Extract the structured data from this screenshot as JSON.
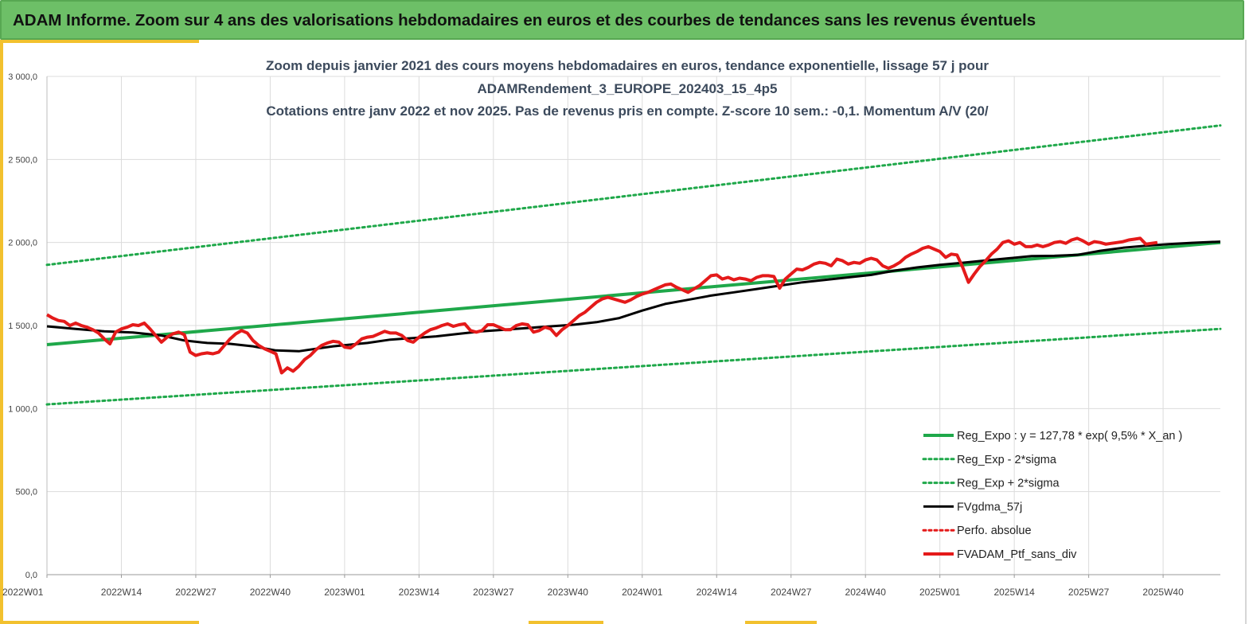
{
  "header": {
    "title": "ADAM Informe. Zoom sur 4 ans des valorisations hebdomadaires en euros et des courbes de tendances sans les revenus éventuels"
  },
  "chart_data": {
    "type": "line",
    "title_lines": [
      "Zoom depuis janvier 2021 des cours moyens hebdomadaires  en euros, tendance exponentielle, lissage 57 j pour",
      "ADAMRendement_3_EUROPE_202403_15_4p5",
      "Cotations entre janv 2022 et nov 2025. Pas de revenus pris en compte. Z-score 10 sem.: -0,1. Momentum A/V (20/"
    ],
    "ylim": [
      0,
      3000
    ],
    "y_ticks": [
      "0,0",
      "500,0",
      "1 000,0",
      "1 500,0",
      "2 000,0",
      "2 500,0",
      "3 000,0"
    ],
    "x_ticks": [
      "2022W01",
      "2022W14",
      "2022W27",
      "2022W40",
      "2023W01",
      "2023W14",
      "2023W27",
      "2023W40",
      "2024W01",
      "2024W14",
      "2024W27",
      "2024W40",
      "2025W01",
      "2025W14",
      "2025W27",
      "2025W40"
    ],
    "x_range_weeks": [
      0,
      205
    ],
    "grid": true,
    "legend_position": "bottom-right",
    "series": [
      {
        "name": "Reg_Expo : y = 127,78 * exp( 9,5% *  X_an )",
        "color": "#1fa84a",
        "style": "solid",
        "width": 4,
        "points": [
          [
            0,
            1385
          ],
          [
            205,
            2000
          ]
        ]
      },
      {
        "name": "Reg_Exp - 2*sigma",
        "color": "#1fa84a",
        "style": "dotted",
        "width": 3,
        "points": [
          [
            0,
            1025
          ],
          [
            205,
            1480
          ]
        ]
      },
      {
        "name": "Reg_Exp + 2*sigma",
        "color": "#1fa84a",
        "style": "dotted",
        "width": 3,
        "points": [
          [
            0,
            1865
          ],
          [
            205,
            2705
          ]
        ]
      },
      {
        "name": "FVgdma_57j",
        "color": "#000000",
        "style": "solid",
        "width": 3,
        "points": [
          [
            0,
            1495
          ],
          [
            5,
            1480
          ],
          [
            10,
            1465
          ],
          [
            15,
            1458
          ],
          [
            20,
            1440
          ],
          [
            24,
            1410
          ],
          [
            28,
            1395
          ],
          [
            32,
            1390
          ],
          [
            36,
            1375
          ],
          [
            40,
            1350
          ],
          [
            44,
            1345
          ],
          [
            47,
            1360
          ],
          [
            50,
            1375
          ],
          [
            53,
            1385
          ],
          [
            56,
            1395
          ],
          [
            60,
            1415
          ],
          [
            64,
            1425
          ],
          [
            68,
            1435
          ],
          [
            72,
            1450
          ],
          [
            76,
            1465
          ],
          [
            80,
            1475
          ],
          [
            84,
            1485
          ],
          [
            88,
            1495
          ],
          [
            92,
            1505
          ],
          [
            96,
            1520
          ],
          [
            100,
            1545
          ],
          [
            104,
            1590
          ],
          [
            108,
            1630
          ],
          [
            112,
            1655
          ],
          [
            116,
            1680
          ],
          [
            120,
            1700
          ],
          [
            124,
            1720
          ],
          [
            128,
            1740
          ],
          [
            132,
            1760
          ],
          [
            136,
            1775
          ],
          [
            140,
            1790
          ],
          [
            144,
            1805
          ],
          [
            148,
            1830
          ],
          [
            152,
            1850
          ],
          [
            156,
            1865
          ],
          [
            160,
            1878
          ],
          [
            164,
            1892
          ],
          [
            168,
            1905
          ],
          [
            172,
            1918
          ],
          [
            176,
            1920
          ],
          [
            180,
            1925
          ],
          [
            184,
            1950
          ],
          [
            188,
            1968
          ],
          [
            192,
            1980
          ],
          [
            196,
            1990
          ],
          [
            200,
            1998
          ],
          [
            205,
            2005
          ]
        ]
      },
      {
        "name": "Perfo. absolue",
        "color": "#e41a1a",
        "style": "dotted",
        "width": 3,
        "points": []
      },
      {
        "name": "FVADAM_Ptf_sans_div",
        "color": "#e41a1a",
        "style": "solid",
        "width": 4,
        "points": [
          [
            0,
            1565
          ],
          [
            1,
            1545
          ],
          [
            2,
            1530
          ],
          [
            3,
            1525
          ],
          [
            4,
            1500
          ],
          [
            5,
            1515
          ],
          [
            6,
            1500
          ],
          [
            7,
            1490
          ],
          [
            8,
            1475
          ],
          [
            9,
            1455
          ],
          [
            10,
            1420
          ],
          [
            11,
            1390
          ],
          [
            12,
            1460
          ],
          [
            13,
            1480
          ],
          [
            14,
            1490
          ],
          [
            15,
            1505
          ],
          [
            16,
            1500
          ],
          [
            17,
            1515
          ],
          [
            18,
            1480
          ],
          [
            19,
            1440
          ],
          [
            20,
            1400
          ],
          [
            21,
            1430
          ],
          [
            22,
            1450
          ],
          [
            23,
            1460
          ],
          [
            24,
            1445
          ],
          [
            25,
            1340
          ],
          [
            26,
            1320
          ],
          [
            27,
            1330
          ],
          [
            28,
            1335
          ],
          [
            29,
            1330
          ],
          [
            30,
            1340
          ],
          [
            31,
            1380
          ],
          [
            32,
            1420
          ],
          [
            33,
            1450
          ],
          [
            34,
            1470
          ],
          [
            35,
            1455
          ],
          [
            36,
            1410
          ],
          [
            37,
            1380
          ],
          [
            38,
            1360
          ],
          [
            39,
            1345
          ],
          [
            40,
            1330
          ],
          [
            41,
            1215
          ],
          [
            42,
            1245
          ],
          [
            43,
            1225
          ],
          [
            44,
            1255
          ],
          [
            45,
            1295
          ],
          [
            46,
            1320
          ],
          [
            47,
            1355
          ],
          [
            48,
            1380
          ],
          [
            49,
            1395
          ],
          [
            50,
            1405
          ],
          [
            51,
            1400
          ],
          [
            52,
            1370
          ],
          [
            53,
            1365
          ],
          [
            54,
            1390
          ],
          [
            55,
            1420
          ],
          [
            56,
            1430
          ],
          [
            57,
            1435
          ],
          [
            58,
            1450
          ],
          [
            59,
            1465
          ],
          [
            60,
            1455
          ],
          [
            61,
            1455
          ],
          [
            62,
            1440
          ],
          [
            63,
            1410
          ],
          [
            64,
            1400
          ],
          [
            65,
            1430
          ],
          [
            66,
            1455
          ],
          [
            67,
            1475
          ],
          [
            68,
            1485
          ],
          [
            69,
            1500
          ],
          [
            70,
            1510
          ],
          [
            71,
            1495
          ],
          [
            72,
            1505
          ],
          [
            73,
            1510
          ],
          [
            74,
            1470
          ],
          [
            75,
            1460
          ],
          [
            76,
            1470
          ],
          [
            77,
            1505
          ],
          [
            78,
            1505
          ],
          [
            79,
            1490
          ],
          [
            80,
            1475
          ],
          [
            81,
            1475
          ],
          [
            82,
            1500
          ],
          [
            83,
            1510
          ],
          [
            84,
            1505
          ],
          [
            85,
            1460
          ],
          [
            86,
            1470
          ],
          [
            87,
            1490
          ],
          [
            88,
            1480
          ],
          [
            89,
            1440
          ],
          [
            90,
            1475
          ],
          [
            91,
            1500
          ],
          [
            92,
            1530
          ],
          [
            93,
            1560
          ],
          [
            94,
            1580
          ],
          [
            95,
            1610
          ],
          [
            96,
            1640
          ],
          [
            97,
            1660
          ],
          [
            98,
            1670
          ],
          [
            99,
            1660
          ],
          [
            100,
            1650
          ],
          [
            101,
            1640
          ],
          [
            102,
            1655
          ],
          [
            103,
            1675
          ],
          [
            104,
            1690
          ],
          [
            105,
            1700
          ],
          [
            106,
            1715
          ],
          [
            107,
            1730
          ],
          [
            108,
            1745
          ],
          [
            109,
            1750
          ],
          [
            110,
            1730
          ],
          [
            111,
            1715
          ],
          [
            112,
            1700
          ],
          [
            113,
            1720
          ],
          [
            114,
            1740
          ],
          [
            115,
            1770
          ],
          [
            116,
            1800
          ],
          [
            117,
            1805
          ],
          [
            118,
            1780
          ],
          [
            119,
            1790
          ],
          [
            120,
            1775
          ],
          [
            121,
            1785
          ],
          [
            122,
            1780
          ],
          [
            123,
            1770
          ],
          [
            124,
            1790
          ],
          [
            125,
            1800
          ],
          [
            126,
            1800
          ],
          [
            127,
            1795
          ],
          [
            128,
            1725
          ],
          [
            129,
            1780
          ],
          [
            130,
            1810
          ],
          [
            131,
            1840
          ],
          [
            132,
            1835
          ],
          [
            133,
            1850
          ],
          [
            134,
            1870
          ],
          [
            135,
            1880
          ],
          [
            136,
            1875
          ],
          [
            137,
            1860
          ],
          [
            138,
            1900
          ],
          [
            139,
            1890
          ],
          [
            140,
            1870
          ],
          [
            141,
            1880
          ],
          [
            142,
            1875
          ],
          [
            143,
            1895
          ],
          [
            144,
            1905
          ],
          [
            145,
            1895
          ],
          [
            146,
            1860
          ],
          [
            147,
            1845
          ],
          [
            148,
            1860
          ],
          [
            149,
            1880
          ],
          [
            150,
            1910
          ],
          [
            151,
            1930
          ],
          [
            152,
            1945
          ],
          [
            153,
            1965
          ],
          [
            154,
            1975
          ],
          [
            155,
            1960
          ],
          [
            156,
            1945
          ],
          [
            157,
            1910
          ],
          [
            158,
            1930
          ],
          [
            159,
            1925
          ],
          [
            160,
            1850
          ],
          [
            161,
            1760
          ],
          [
            162,
            1810
          ],
          [
            163,
            1855
          ],
          [
            164,
            1890
          ],
          [
            165,
            1930
          ],
          [
            166,
            1960
          ],
          [
            167,
            2000
          ],
          [
            168,
            2010
          ],
          [
            169,
            1990
          ],
          [
            170,
            2000
          ],
          [
            171,
            1975
          ],
          [
            172,
            1975
          ],
          [
            173,
            1985
          ],
          [
            174,
            1975
          ],
          [
            175,
            1985
          ],
          [
            176,
            2000
          ],
          [
            177,
            2005
          ],
          [
            178,
            1995
          ],
          [
            179,
            2015
          ],
          [
            180,
            2025
          ],
          [
            181,
            2010
          ],
          [
            182,
            1990
          ],
          [
            183,
            2005
          ],
          [
            184,
            2000
          ],
          [
            185,
            1990
          ],
          [
            186,
            1995
          ],
          [
            187,
            2000
          ],
          [
            188,
            2005
          ],
          [
            189,
            2015
          ],
          [
            190,
            2020
          ],
          [
            191,
            2025
          ],
          [
            192,
            1990
          ],
          [
            193,
            1995
          ],
          [
            194,
            2000
          ]
        ]
      }
    ]
  }
}
